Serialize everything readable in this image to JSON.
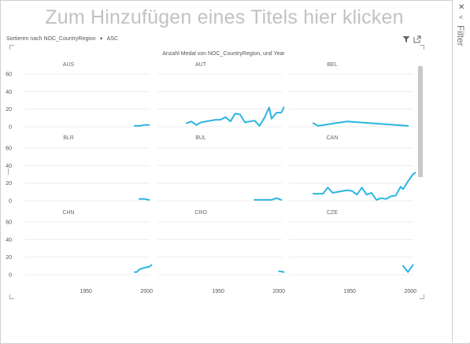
{
  "header": {
    "title": "Zum Hinzufügen eines Titels hier klicken",
    "sort_label": "Sortieren nach NOC_CountryRegion",
    "sort_order": "ASC"
  },
  "filter_pane": {
    "label": "Filter"
  },
  "colors": {
    "line": "#2bb5e2",
    "grid": "#ececec",
    "text": "#555555"
  },
  "chart_data": {
    "type": "line",
    "title": "Anzahl Medal von NOC_CountryRegion, und Year",
    "ylim": [
      0,
      60
    ],
    "yticks": [
      0,
      20,
      40,
      60
    ],
    "xlim": [
      1900,
      2005
    ],
    "xticks": [
      1950,
      2000
    ],
    "panels": [
      {
        "name": "AUS",
        "x": [
          1990,
          1994,
          1998,
          2002
        ],
        "y": [
          1,
          1,
          2,
          2
        ]
      },
      {
        "name": "AUT",
        "x": [
          1924,
          1928,
          1932,
          1936,
          1948,
          1952,
          1956,
          1960,
          1964,
          1968,
          1972,
          1976,
          1980,
          1984,
          1988,
          1992,
          1994,
          1998,
          2002,
          2004
        ],
        "y": [
          4,
          6,
          2,
          5,
          8,
          8,
          11,
          6,
          15,
          14,
          5,
          6,
          7,
          1,
          10,
          22,
          9,
          16,
          16,
          22
        ]
      },
      {
        "name": "BEL",
        "x": [
          1920,
          1924,
          1948,
          1998
        ],
        "y": [
          4,
          1,
          6,
          1
        ]
      },
      {
        "name": "BLR",
        "x": [
          1994,
          1998,
          2002
        ],
        "y": [
          2,
          2,
          1
        ]
      },
      {
        "name": "BUL",
        "x": [
          1980,
          1988,
          1994,
          1998,
          2002
        ],
        "y": [
          1,
          1,
          1,
          3,
          1
        ]
      },
      {
        "name": "CAN",
        "x": [
          1920,
          1924,
          1928,
          1932,
          1936,
          1948,
          1952,
          1956,
          1960,
          1964,
          1968,
          1972,
          1976,
          1980,
          1984,
          1988,
          1992,
          1994,
          1998,
          2002,
          2004
        ],
        "y": [
          8,
          8,
          8,
          15,
          9,
          12,
          11,
          7,
          15,
          7,
          9,
          1,
          3,
          2,
          5,
          6,
          16,
          13,
          22,
          30,
          32
        ]
      },
      {
        "name": "CHN",
        "x": [
          1990,
          1992,
          1994,
          1998,
          2002,
          2004
        ],
        "y": [
          3,
          3,
          6,
          8,
          9,
          11
        ]
      },
      {
        "name": "CRO",
        "x": [
          2000,
          2004
        ],
        "y": [
          4,
          3
        ]
      },
      {
        "name": "CZE",
        "x": [
          1994,
          1998,
          2002
        ],
        "y": [
          10,
          3,
          11
        ]
      }
    ]
  }
}
